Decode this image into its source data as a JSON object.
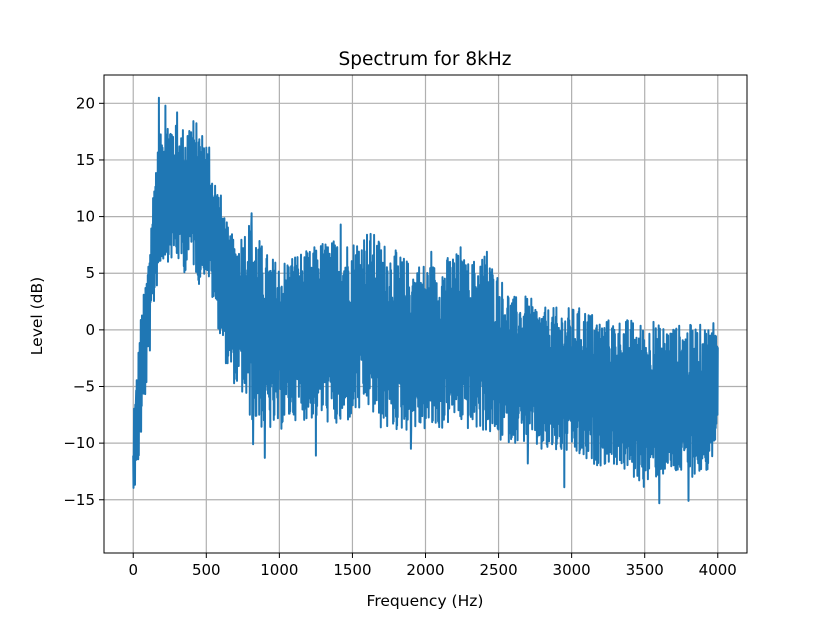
{
  "chart_data": {
    "type": "line",
    "title": "Spectrum for 8kHz",
    "xlabel": "Frequency (Hz)",
    "ylabel": "Level (dB)",
    "xlim": [
      -200,
      4200
    ],
    "ylim": [
      -19.7,
      22.5
    ],
    "xticks": [
      0,
      500,
      1000,
      1500,
      2000,
      2500,
      3000,
      3500,
      4000
    ],
    "xtick_labels": [
      "0",
      "500",
      "1000",
      "1500",
      "2000",
      "2500",
      "3000",
      "3500",
      "4000"
    ],
    "yticks": [
      -15,
      -10,
      -5,
      0,
      5,
      10,
      15,
      20
    ],
    "ytick_labels": [
      "−15",
      "−10",
      "−5",
      "0",
      "5",
      "10",
      "15",
      "20"
    ],
    "grid": true,
    "series": [
      {
        "color": "#1f77b4",
        "x": [
          0,
          50,
          100,
          150,
          200,
          250,
          300,
          350,
          400,
          450,
          500,
          550,
          600,
          650,
          700,
          750,
          800,
          900,
          1000,
          1100,
          1200,
          1300,
          1400,
          1500,
          1600,
          1700,
          1800,
          1900,
          2000,
          2100,
          2200,
          2300,
          2400,
          2500,
          2600,
          2700,
          2800,
          2900,
          3000,
          3100,
          3200,
          3300,
          3400,
          3500,
          3600,
          3700,
          3800,
          3900,
          4000
        ],
        "upper": [
          -8,
          1,
          6,
          15,
          18,
          19,
          18,
          18,
          19,
          18,
          17,
          14,
          12,
          9,
          8,
          9,
          10,
          7,
          6,
          7,
          7,
          8,
          8,
          8,
          9,
          8,
          7,
          6,
          6,
          6,
          7,
          6,
          7,
          5,
          3,
          3,
          2,
          2,
          2,
          2,
          1,
          1,
          1,
          0.5,
          0.5,
          0.5,
          0.5,
          0.5,
          0.5
        ],
        "lower": [
          -17,
          -10,
          -4,
          3,
          6,
          6,
          6,
          5,
          6,
          4,
          5,
          2,
          -1,
          -4,
          -5,
          -6,
          -8,
          -9,
          -9,
          -8,
          -8,
          -8,
          -9,
          -8,
          -7,
          -9,
          -9,
          -9,
          -9,
          -9,
          -8,
          -9,
          -9,
          -10,
          -10,
          -10,
          -11,
          -11,
          -11,
          -12,
          -12,
          -12,
          -13,
          -14,
          -13,
          -13,
          -13,
          -13,
          -11
        ],
        "spikes_up": [
          [
            175,
            20.5
          ],
          [
            220,
            19.8
          ],
          [
            300,
            19.2
          ],
          [
            420,
            16.5
          ],
          [
            520,
            16.1
          ],
          [
            810,
            10.3
          ],
          [
            1420,
            9.3
          ],
          [
            1600,
            8.4
          ],
          [
            2040,
            6.9
          ],
          [
            2240,
            7.3
          ],
          [
            2420,
            6.9
          ],
          [
            3560,
            0.7
          ],
          [
            3970,
            0.6
          ]
        ],
        "spikes_down": [
          [
            12,
            -18.0
          ],
          [
            820,
            -10.1
          ],
          [
            900,
            -11.3
          ],
          [
            1250,
            -11.1
          ],
          [
            1900,
            -10.5
          ],
          [
            2700,
            -11.8
          ],
          [
            2950,
            -13.9
          ],
          [
            3600,
            -15.3
          ],
          [
            3800,
            -15.1
          ],
          [
            3930,
            -12.3
          ]
        ]
      }
    ]
  }
}
